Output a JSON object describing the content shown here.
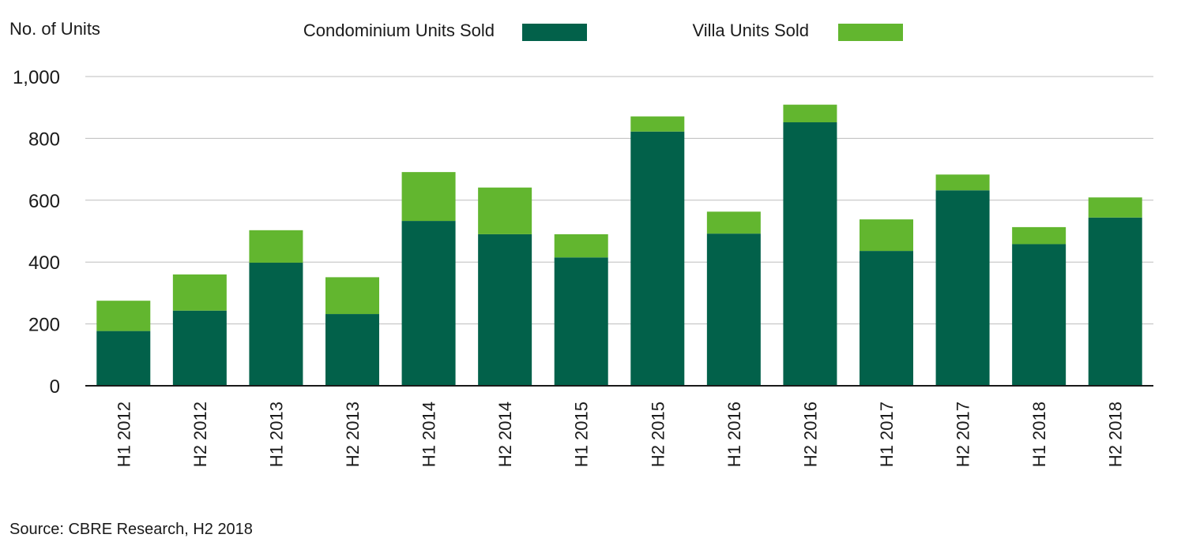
{
  "chart_data": {
    "type": "bar",
    "stacked": true,
    "ylabel": "No. of Units",
    "ylim": [
      0,
      1000
    ],
    "yticks": [
      "0",
      "200",
      "400",
      "600",
      "800",
      "1,000"
    ],
    "ytick_values": [
      0,
      200,
      400,
      600,
      800,
      1000
    ],
    "grid": true,
    "legend_position": "top",
    "categories": [
      "H1 2012",
      "H2 2012",
      "H1 2013",
      "H2 2013",
      "H1 2014",
      "H2 2014",
      "H1 2015",
      "H2 2015",
      "H1 2016",
      "H2 2016",
      "H1 2017",
      "H2 2017",
      "H1 2018",
      "H2 2018"
    ],
    "series": [
      {
        "name": "Condominium Units Sold",
        "color": "#02614a",
        "values": [
          177,
          243,
          398,
          232,
          533,
          490,
          415,
          822,
          492,
          852,
          436,
          632,
          458,
          544
        ]
      },
      {
        "name": "Villa Units Sold",
        "color": "#62b62f",
        "values": [
          98,
          117,
          105,
          119,
          158,
          151,
          75,
          49,
          71,
          57,
          102,
          51,
          55,
          65
        ]
      }
    ]
  },
  "source": "Source: CBRE Research, H2 2018"
}
